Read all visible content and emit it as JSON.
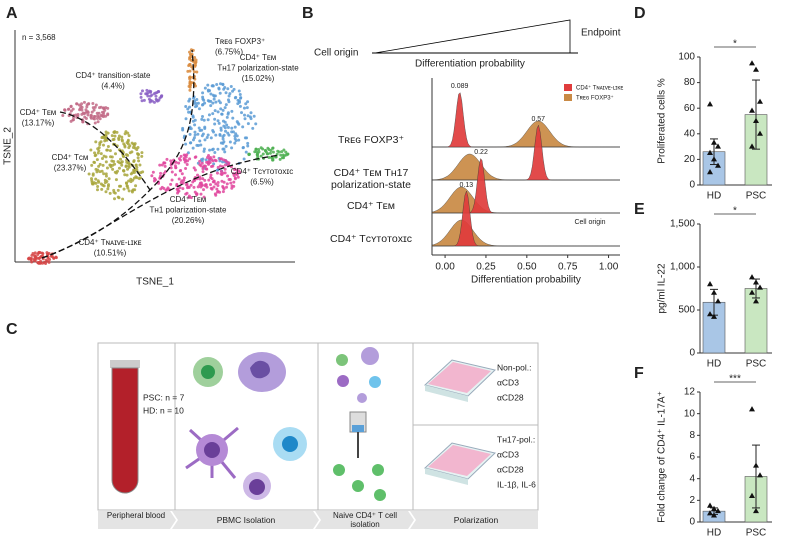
{
  "panel_labels": [
    "A",
    "B",
    "C",
    "D",
    "E",
    "F"
  ],
  "tsne": {
    "n_label": "n = 3,568",
    "xlabel": "TSNE_1",
    "ylabel": "TSNE_2",
    "clusters": [
      {
        "lines": [
          "Tʀᴇɢ FOXP3⁺",
          "(6.75%)"
        ],
        "color": "#d98a3c"
      },
      {
        "lines": [
          "CD4⁺ transition-state",
          "(4.4%)"
        ],
        "color": "#8a5fc4"
      },
      {
        "lines": [
          "CD4⁺ Tᴇᴍ",
          "Tʜ17 polarization-state",
          "(15.02%)"
        ],
        "color": "#5b9bd5"
      },
      {
        "lines": [
          "CD4⁺ Tᴇᴍ",
          "(13.17%)"
        ],
        "color": "#c26a86"
      },
      {
        "lines": [
          "CD4⁺ Tᴄᴍ",
          "(23.37%)"
        ],
        "color": "#a8a63c"
      },
      {
        "lines": [
          "CD4⁺ Tᴄʏᴛᴏᴛᴏxɪᴄ",
          "(6.5%)"
        ],
        "color": "#4caf50"
      },
      {
        "lines": [
          "CD4⁺ Tᴇᴍ",
          "Tʜ1 polarization-state",
          "(20.26%)"
        ],
        "color": "#e0479e"
      },
      {
        "lines": [
          "CD4⁺ Tɴᴀɪᴠᴇ-ʟɪᴋᴇ",
          "(10.51%)"
        ],
        "color": "#d64545"
      }
    ]
  },
  "trajectory": {
    "start": "Cell origin",
    "end": "Endpoint",
    "axis": "Differentiation probability"
  },
  "chart_data": [
    {
      "type": "ridgeline",
      "categories": [
        "Tʀᴇɢ FOXP3⁺",
        "CD4⁺ Tᴇᴍ Tʜ17 polarization-state",
        "CD4⁺ Tᴇᴍ",
        "CD4⁺ Tᴄʏᴛᴏᴛᴏxɪᴄ"
      ],
      "series": [
        {
          "name": "CD4⁺ Tɴᴀɪᴠᴇ-ʟɪᴋᴇ",
          "color": "#e03c3c",
          "values": [
            0.089,
            0.57,
            0.22,
            0.13
          ]
        },
        {
          "name": "Tʀᴇɢ FOXP3⁺",
          "color": "#c98a45",
          "values": [
            0.57,
            0.15,
            0.1,
            0.1
          ]
        }
      ],
      "xlim": [
        -0.08,
        1.07
      ],
      "xticks": [
        {
          "value": 0,
          "label": "0.00"
        },
        {
          "value": 0.25,
          "label": "0.25"
        },
        {
          "value": 0.5,
          "label": "0.50"
        },
        {
          "value": 0.75,
          "label": "0.75"
        },
        {
          "value": 1,
          "label": "1.00"
        }
      ],
      "xlabel": "Differentiation probability",
      "annotation": "Cell origin"
    },
    {
      "type": "bar",
      "categories": [
        "HD",
        "PSC"
      ],
      "values": [
        26,
        55
      ],
      "errors": [
        10,
        27
      ],
      "points": [
        [
          63,
          33,
          30,
          25,
          20,
          15,
          10
        ],
        [
          95,
          90,
          65,
          58,
          50,
          40,
          30
        ]
      ],
      "colors": [
        "#a9c6e6",
        "#c9e7c1"
      ],
      "ylabel": "Proliferated cells %",
      "ylim": [
        0,
        100
      ],
      "yticks": [
        0,
        20,
        40,
        60,
        80,
        100
      ],
      "significance": "*"
    },
    {
      "type": "bar",
      "categories": [
        "HD",
        "PSC"
      ],
      "values": [
        590,
        750
      ],
      "errors": [
        150,
        110
      ],
      "points": [
        [
          800,
          700,
          600,
          450,
          420
        ],
        [
          880,
          820,
          760,
          700,
          600
        ]
      ],
      "colors": [
        "#a9c6e6",
        "#c9e7c1"
      ],
      "ylabel": "pg/ml IL-22",
      "ylim": [
        0,
        1500
      ],
      "yticks": [
        0,
        500,
        {
          "value": 1000,
          "label": "1,000"
        },
        {
          "value": 1500,
          "label": "1,500"
        }
      ],
      "significance": "*"
    },
    {
      "type": "bar",
      "categories": [
        "HD",
        "PSC"
      ],
      "values": [
        1.0,
        4.2
      ],
      "errors": [
        0.3,
        2.9
      ],
      "points": [
        [
          1.5,
          1.2,
          1.0,
          0.8,
          0.6
        ],
        [
          10.4,
          5.2,
          4.3,
          2.4,
          1.0
        ]
      ],
      "colors": [
        "#a9c6e6",
        "#c9e7c1"
      ],
      "ylabel": "Fold change of CD4⁺ IL-17A⁺",
      "ylim": [
        0,
        12
      ],
      "yticks": [
        0,
        2,
        4,
        6,
        8,
        10,
        12
      ],
      "significance": "***"
    }
  ],
  "workflow": {
    "counts": [
      "PSC: n = 7",
      "HD: n = 10"
    ],
    "non_pol": [
      "Non-pol.:",
      "αCD3",
      "αCD28"
    ],
    "th17_pol": [
      "Tʜ17-pol.:",
      "αCD3",
      "αCD28",
      "IL-1β, IL-6"
    ],
    "steps": [
      "Peripheral blood",
      "PBMC Isolation",
      "Naive CD4⁺ T cell isolation",
      "Polarization"
    ]
  }
}
